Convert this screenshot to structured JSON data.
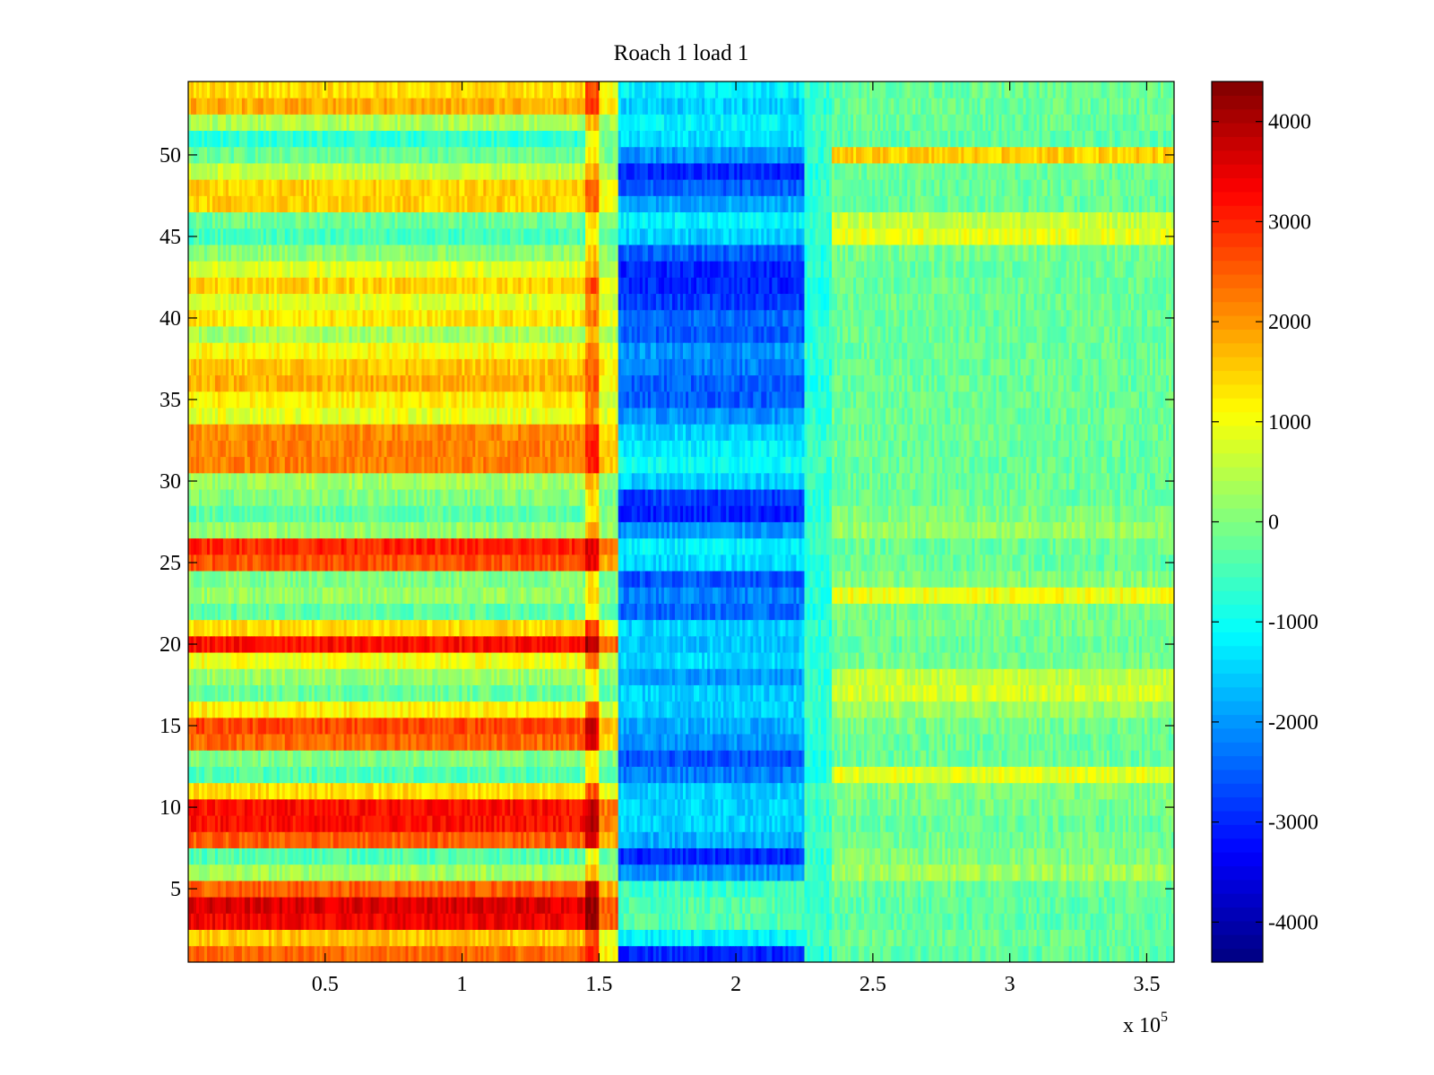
{
  "chart_data": {
    "type": "heatmap",
    "title": "Roach 1 load 1",
    "xlabel": "",
    "ylabel": "",
    "x_multiplier_label": {
      "base": "x 10",
      "exponent": "5"
    },
    "xlim": [
      0,
      360000
    ],
    "ylim": [
      0.5,
      54.5
    ],
    "x_ticks": [
      0.5,
      1,
      1.5,
      2,
      2.5,
      3,
      3.5
    ],
    "x_tick_labels": [
      "0.5",
      "1",
      "1.5",
      "2",
      "2.5",
      "3",
      "3.5"
    ],
    "y_ticks": [
      5,
      10,
      15,
      20,
      25,
      30,
      35,
      40,
      45,
      50
    ],
    "y_tick_labels": [
      "5",
      "10",
      "15",
      "20",
      "25",
      "30",
      "35",
      "40",
      "45",
      "50"
    ],
    "rows": 54,
    "colormap": "jet",
    "colorbar": {
      "range": [
        -4400,
        4400
      ],
      "ticks": [
        -4000,
        -3000,
        -2000,
        -1000,
        0,
        1000,
        2000,
        3000,
        4000
      ],
      "tick_labels": [
        "-4000",
        "-3000",
        "-2000",
        "-1000",
        "0",
        "1000",
        "2000",
        "3000",
        "4000"
      ]
    },
    "segments_x": [
      0,
      145000,
      150000,
      157000,
      225000,
      235000,
      360000
    ],
    "row_levels": [
      [
        2400,
        3000,
        1200,
        -3000,
        -800,
        -300
      ],
      [
        1600,
        2600,
        900,
        -1200,
        -600,
        -200
      ],
      [
        3400,
        4200,
        2500,
        -400,
        -600,
        -300
      ],
      [
        3600,
        4300,
        2600,
        -400,
        -600,
        -300
      ],
      [
        2500,
        3600,
        1800,
        -600,
        -600,
        -200
      ],
      [
        300,
        1600,
        200,
        -2000,
        -600,
        300
      ],
      [
        -400,
        900,
        -200,
        -3000,
        -700,
        0
      ],
      [
        2500,
        3400,
        1800,
        -1800,
        -600,
        -100
      ],
      [
        3200,
        4000,
        2200,
        -1500,
        -600,
        -200
      ],
      [
        3200,
        3800,
        2200,
        -1500,
        -600,
        -100
      ],
      [
        1400,
        2600,
        900,
        -1500,
        -600,
        0
      ],
      [
        -400,
        1000,
        -300,
        -2200,
        -800,
        900
      ],
      [
        0,
        1200,
        0,
        -2600,
        -800,
        -200
      ],
      [
        2400,
        3500,
        1500,
        -2000,
        -700,
        -200
      ],
      [
        2700,
        3600,
        1600,
        -1800,
        -700,
        -100
      ],
      [
        1200,
        2500,
        700,
        -1500,
        -700,
        200
      ],
      [
        -200,
        900,
        -200,
        -1500,
        -600,
        700
      ],
      [
        200,
        1200,
        0,
        -2000,
        -700,
        600
      ],
      [
        1000,
        2200,
        600,
        -1400,
        -700,
        -100
      ],
      [
        3200,
        4000,
        2500,
        -1600,
        -700,
        -200
      ],
      [
        1400,
        2800,
        1100,
        -1500,
        -700,
        -100
      ],
      [
        -300,
        1200,
        -200,
        -2400,
        -800,
        -100
      ],
      [
        200,
        1400,
        100,
        -2200,
        -700,
        1000
      ],
      [
        0,
        1200,
        -100,
        -2600,
        -800,
        0
      ],
      [
        2600,
        3400,
        1800,
        -1400,
        -700,
        -200
      ],
      [
        3000,
        3600,
        2300,
        -1200,
        -700,
        -200
      ],
      [
        200,
        1800,
        200,
        -2000,
        -700,
        200
      ],
      [
        -300,
        1200,
        0,
        -3000,
        -800,
        0
      ],
      [
        0,
        1300,
        0,
        -2800,
        -800,
        -200
      ],
      [
        300,
        1600,
        200,
        -1500,
        -700,
        -200
      ],
      [
        2200,
        3000,
        1600,
        -1000,
        -600,
        -200
      ],
      [
        2200,
        3100,
        1600,
        -1200,
        -600,
        -200
      ],
      [
        2100,
        3000,
        1500,
        -1500,
        -600,
        -200
      ],
      [
        900,
        2000,
        800,
        -2000,
        -700,
        -200
      ],
      [
        1200,
        2200,
        800,
        -2500,
        -800,
        -200
      ],
      [
        1800,
        2600,
        1200,
        -2500,
        -800,
        -200
      ],
      [
        1600,
        2500,
        1200,
        -2200,
        -800,
        -200
      ],
      [
        1100,
        2200,
        800,
        -2000,
        -700,
        -200
      ],
      [
        300,
        1600,
        400,
        -2500,
        -700,
        -200
      ],
      [
        1300,
        2400,
        1000,
        -2400,
        -700,
        -200
      ],
      [
        800,
        1900,
        600,
        -2800,
        -800,
        -200
      ],
      [
        1500,
        2600,
        1100,
        -3000,
        -800,
        -200
      ],
      [
        800,
        1900,
        500,
        -3000,
        -800,
        -200
      ],
      [
        100,
        1600,
        100,
        -2500,
        -800,
        -100
      ],
      [
        -500,
        1100,
        -200,
        -1500,
        -700,
        900
      ],
      [
        -200,
        1200,
        -100,
        -1200,
        -600,
        600
      ],
      [
        1500,
        2400,
        900,
        -1800,
        -700,
        -200
      ],
      [
        1500,
        2600,
        1000,
        -2500,
        -700,
        -200
      ],
      [
        600,
        1700,
        400,
        -3000,
        -800,
        -200
      ],
      [
        -200,
        1200,
        -100,
        -2000,
        -700,
        1500
      ],
      [
        -700,
        1000,
        -200,
        -1400,
        -700,
        -300
      ],
      [
        400,
        1600,
        300,
        -1200,
        -600,
        -200
      ],
      [
        1800,
        2900,
        1200,
        -1500,
        -700,
        -200
      ],
      [
        1400,
        2600,
        1000,
        -1200,
        -600,
        -200
      ]
    ]
  }
}
